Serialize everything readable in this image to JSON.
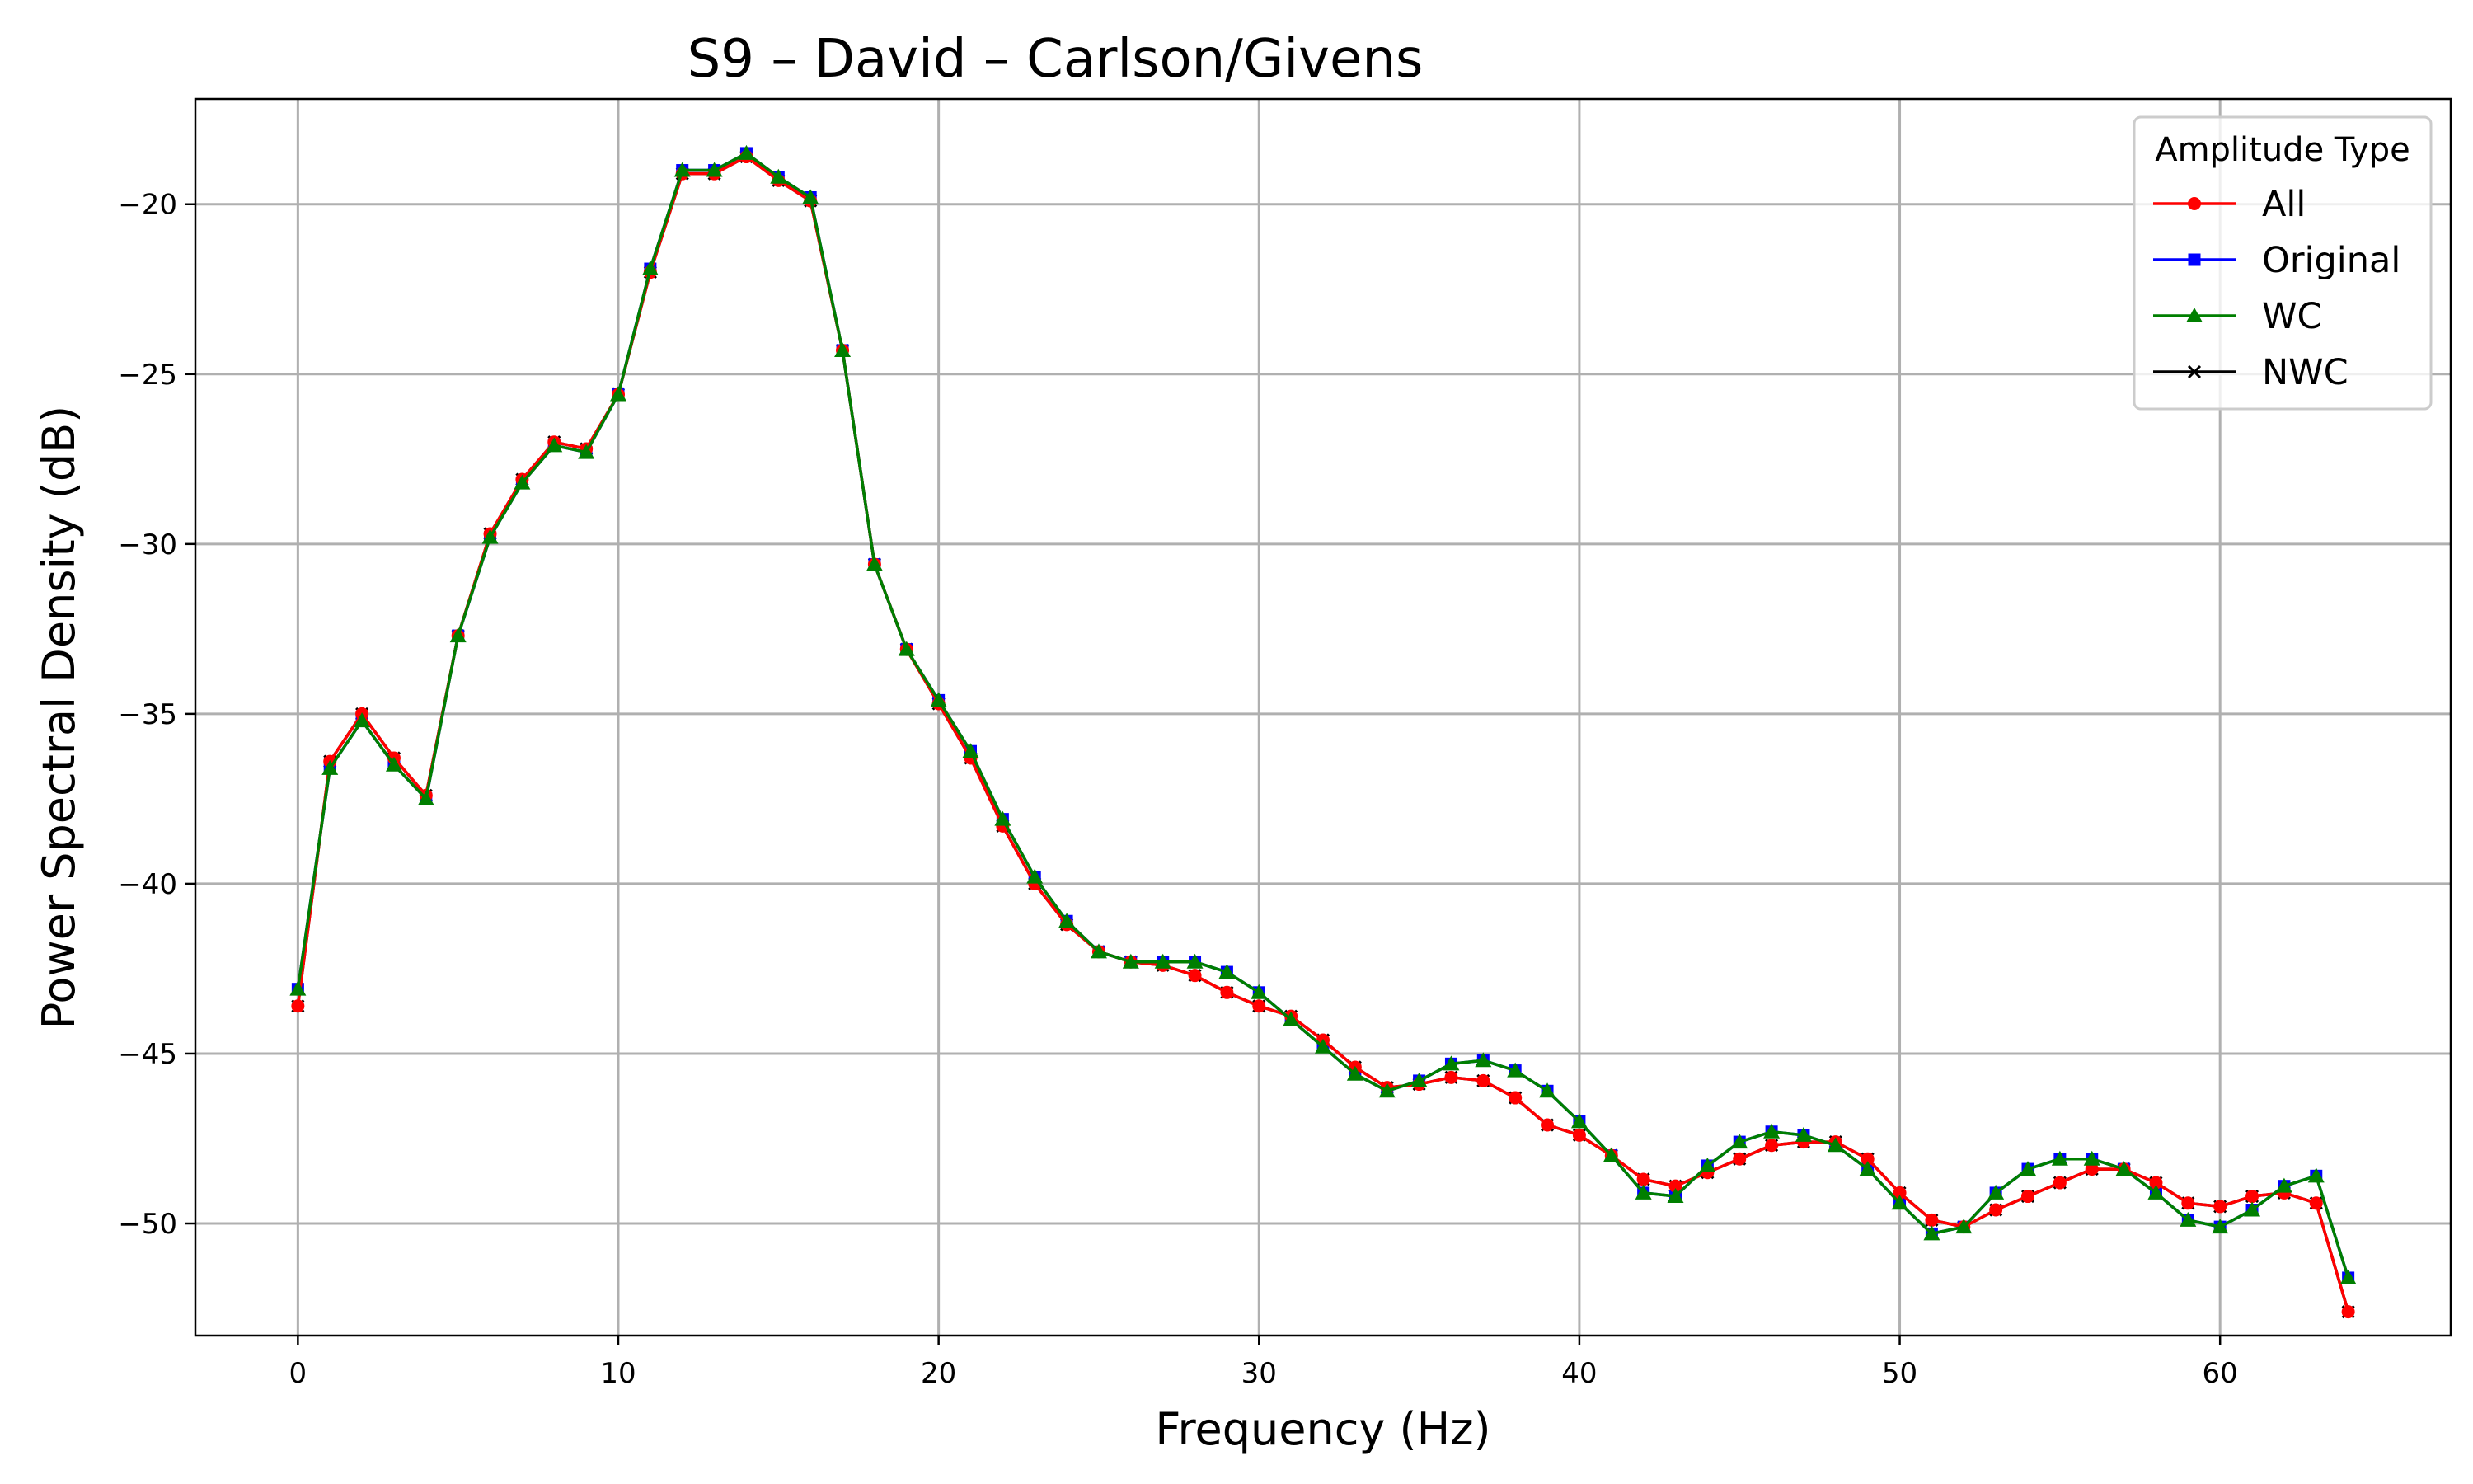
{
  "chart_data": {
    "type": "line",
    "title": "S9 – David – Carlson/Givens",
    "xlabel": "Frequency (Hz)",
    "ylabel": "Power Spectral Density (dB)",
    "xlim": [
      -3.2,
      67.2
    ],
    "ylim": [
      -53.3,
      -16.9
    ],
    "grid": true,
    "legend": {
      "title": "Amplitude Type",
      "placement": "top-right"
    },
    "x_ticks": [
      {
        "value": 0,
        "label": "0"
      },
      {
        "value": 10,
        "label": "10"
      },
      {
        "value": 20,
        "label": "20"
      },
      {
        "value": 30,
        "label": "30"
      },
      {
        "value": 40,
        "label": "40"
      },
      {
        "value": 50,
        "label": "50"
      },
      {
        "value": 60,
        "label": "60"
      }
    ],
    "y_ticks": [
      {
        "value": -20,
        "label": "−20"
      },
      {
        "value": -25,
        "label": "−25"
      },
      {
        "value": -30,
        "label": "−30"
      },
      {
        "value": -35,
        "label": "−35"
      },
      {
        "value": -40,
        "label": "−40"
      },
      {
        "value": -45,
        "label": "−45"
      },
      {
        "value": -50,
        "label": "−50"
      }
    ],
    "x": [
      0,
      1,
      2,
      3,
      4,
      5,
      6,
      7,
      8,
      9,
      10,
      11,
      12,
      13,
      14,
      15,
      16,
      17,
      18,
      19,
      20,
      21,
      22,
      23,
      24,
      25,
      26,
      27,
      28,
      29,
      30,
      31,
      32,
      33,
      34,
      35,
      36,
      37,
      38,
      39,
      40,
      41,
      42,
      43,
      44,
      45,
      46,
      47,
      48,
      49,
      50,
      51,
      52,
      53,
      54,
      55,
      56,
      57,
      58,
      59,
      60,
      61,
      62,
      63,
      64
    ],
    "series": [
      {
        "name": "All",
        "color": "#ff0000",
        "marker": "circle",
        "values": [
          -43.6,
          -36.4,
          -35.0,
          -36.3,
          -37.4,
          -32.7,
          -29.7,
          -28.1,
          -27.0,
          -27.2,
          -25.6,
          -22.0,
          -19.1,
          -19.1,
          -18.6,
          -19.3,
          -19.9,
          -24.3,
          -30.6,
          -33.1,
          -34.7,
          -36.3,
          -38.3,
          -40.0,
          -41.2,
          -42.0,
          -42.3,
          -42.4,
          -42.7,
          -43.2,
          -43.6,
          -43.9,
          -44.6,
          -45.4,
          -46.0,
          -45.9,
          -45.7,
          -45.8,
          -46.3,
          -47.1,
          -47.4,
          -48.0,
          -48.7,
          -48.9,
          -48.5,
          -48.1,
          -47.7,
          -47.6,
          -47.6,
          -48.1,
          -49.1,
          -49.9,
          -50.1,
          -49.6,
          -49.2,
          -48.8,
          -48.4,
          -48.4,
          -48.8,
          -49.4,
          -49.5,
          -49.2,
          -49.1,
          -49.4,
          -52.6
        ]
      },
      {
        "name": "Original",
        "color": "#0000ff",
        "marker": "square",
        "values": [
          -43.1,
          -36.6,
          -35.2,
          -36.5,
          -37.5,
          -32.7,
          -29.8,
          -28.2,
          -27.1,
          -27.3,
          -25.6,
          -21.9,
          -19.0,
          -19.0,
          -18.5,
          -19.2,
          -19.8,
          -24.3,
          -30.6,
          -33.1,
          -34.6,
          -36.1,
          -38.1,
          -39.8,
          -41.1,
          -42.0,
          -42.3,
          -42.3,
          -42.3,
          -42.6,
          -43.2,
          -44.0,
          -44.8,
          -45.6,
          -46.1,
          -45.8,
          -45.3,
          -45.2,
          -45.5,
          -46.1,
          -47.0,
          -48.0,
          -49.1,
          -49.2,
          -48.3,
          -47.6,
          -47.3,
          -47.4,
          -47.7,
          -48.4,
          -49.4,
          -50.3,
          -50.1,
          -49.1,
          -48.4,
          -48.1,
          -48.1,
          -48.4,
          -49.1,
          -49.9,
          -50.1,
          -49.6,
          -48.9,
          -48.6,
          -51.6
        ]
      },
      {
        "name": "WC",
        "color": "#007f00",
        "marker": "triangle",
        "values": [
          -43.1,
          -36.6,
          -35.2,
          -36.5,
          -37.5,
          -32.7,
          -29.8,
          -28.2,
          -27.1,
          -27.3,
          -25.6,
          -21.9,
          -19.0,
          -19.0,
          -18.5,
          -19.2,
          -19.8,
          -24.3,
          -30.6,
          -33.1,
          -34.6,
          -36.1,
          -38.1,
          -39.8,
          -41.1,
          -42.0,
          -42.3,
          -42.3,
          -42.3,
          -42.6,
          -43.2,
          -44.0,
          -44.8,
          -45.6,
          -46.1,
          -45.8,
          -45.3,
          -45.2,
          -45.5,
          -46.1,
          -47.0,
          -48.0,
          -49.1,
          -49.2,
          -48.3,
          -47.6,
          -47.3,
          -47.4,
          -47.7,
          -48.4,
          -49.4,
          -50.3,
          -50.1,
          -49.1,
          -48.4,
          -48.1,
          -48.1,
          -48.4,
          -49.1,
          -49.9,
          -50.1,
          -49.6,
          -48.9,
          -48.6,
          -51.6
        ]
      },
      {
        "name": "NWC",
        "color": "#000000",
        "marker": "x",
        "values": [
          -43.6,
          -36.4,
          -35.0,
          -36.3,
          -37.4,
          -32.7,
          -29.7,
          -28.1,
          -27.0,
          -27.2,
          -25.6,
          -22.0,
          -19.1,
          -19.1,
          -18.6,
          -19.3,
          -19.9,
          -24.3,
          -30.6,
          -33.1,
          -34.7,
          -36.3,
          -38.3,
          -40.0,
          -41.2,
          -42.0,
          -42.3,
          -42.4,
          -42.7,
          -43.2,
          -43.6,
          -43.9,
          -44.6,
          -45.4,
          -46.0,
          -45.9,
          -45.7,
          -45.8,
          -46.3,
          -47.1,
          -47.4,
          -48.0,
          -48.7,
          -48.9,
          -48.5,
          -48.1,
          -47.7,
          -47.6,
          -47.6,
          -48.1,
          -49.1,
          -49.9,
          -50.1,
          -49.6,
          -49.2,
          -48.8,
          -48.4,
          -48.4,
          -48.8,
          -49.4,
          -49.5,
          -49.2,
          -49.1,
          -49.4,
          -52.6
        ]
      }
    ],
    "draw_order": [
      "NWC",
      "Original",
      "All",
      "WC"
    ]
  }
}
